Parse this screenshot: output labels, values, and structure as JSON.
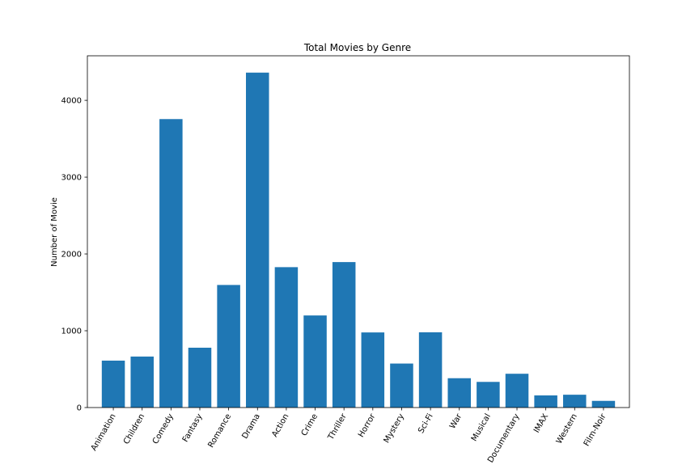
{
  "chart_data": {
    "type": "bar",
    "title": "Total Movies by Genre",
    "xlabel": "",
    "ylabel": "Number of Movie",
    "categories": [
      "Animation",
      "Children",
      "Comedy",
      "Fantasy",
      "Romance",
      "Drama",
      "Action",
      "Crime",
      "Thriller",
      "Horror",
      "Mystery",
      "Sci-Fi",
      "War",
      "Musical",
      "Documentary",
      "IMAX",
      "Western",
      "Film-Noir"
    ],
    "values": [
      611,
      664,
      3756,
      779,
      1596,
      4361,
      1828,
      1199,
      1894,
      978,
      573,
      980,
      382,
      334,
      440,
      158,
      167,
      87
    ],
    "ylim": [
      0,
      4580
    ],
    "yticks": [
      0,
      1000,
      2000,
      3000,
      4000
    ],
    "grid": false,
    "bar_color": "#1f77b4"
  }
}
